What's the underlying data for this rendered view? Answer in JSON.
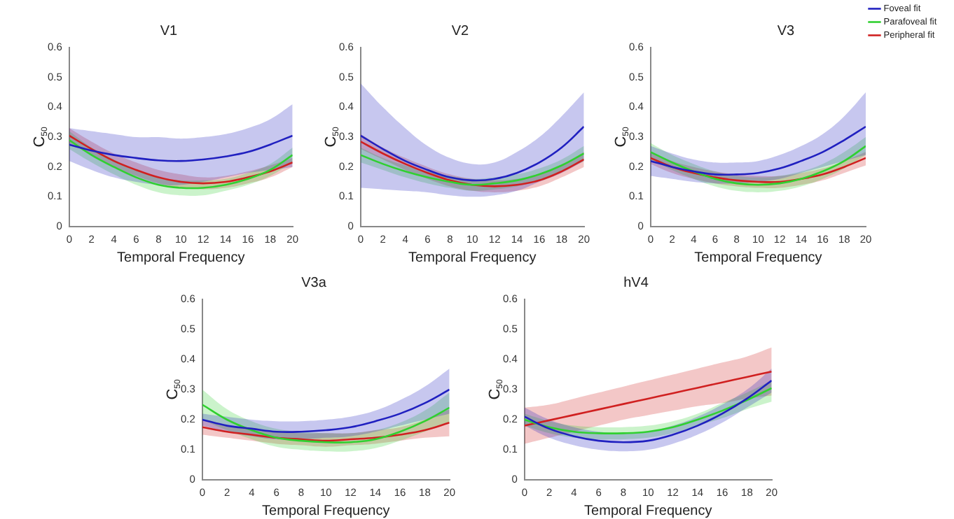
{
  "chart_data": [
    {
      "type": "line",
      "title": "V1",
      "xlabel": "Temporal Frequency",
      "ylabel": "C$_{50}$",
      "x": [
        0,
        2,
        4,
        6,
        8,
        10,
        12,
        14,
        16,
        18,
        20
      ],
      "xlim": [
        0,
        20
      ],
      "xticks": [
        0,
        2,
        4,
        6,
        8,
        10,
        12,
        14,
        16,
        18,
        20
      ],
      "ylim": [
        0,
        0.6
      ],
      "yticks": [
        0,
        0.1,
        0.2,
        0.3,
        0.4,
        0.5,
        0.6
      ],
      "grid": false,
      "legend": false,
      "series": [
        {
          "color": "#2020c0",
          "values": [
            0.275,
            0.255,
            0.24,
            0.23,
            0.222,
            0.22,
            0.225,
            0.235,
            0.25,
            0.275,
            0.305
          ],
          "lower": [
            0.22,
            0.19,
            0.165,
            0.15,
            0.14,
            0.14,
            0.15,
            0.165,
            0.18,
            0.19,
            0.2
          ],
          "upper": [
            0.33,
            0.32,
            0.31,
            0.3,
            0.3,
            0.295,
            0.3,
            0.31,
            0.33,
            0.36,
            0.41
          ]
        },
        {
          "color": "#30d030",
          "values": [
            0.29,
            0.24,
            0.2,
            0.165,
            0.14,
            0.13,
            0.13,
            0.14,
            0.16,
            0.19,
            0.24
          ],
          "lower": [
            0.26,
            0.215,
            0.175,
            0.14,
            0.115,
            0.105,
            0.105,
            0.12,
            0.14,
            0.17,
            0.215
          ],
          "upper": [
            0.32,
            0.265,
            0.225,
            0.19,
            0.165,
            0.155,
            0.155,
            0.16,
            0.18,
            0.21,
            0.265
          ]
        },
        {
          "color": "#d02020",
          "values": [
            0.305,
            0.26,
            0.22,
            0.19,
            0.165,
            0.15,
            0.145,
            0.15,
            0.165,
            0.185,
            0.215
          ],
          "lower": [
            0.28,
            0.24,
            0.2,
            0.17,
            0.145,
            0.13,
            0.125,
            0.13,
            0.145,
            0.165,
            0.2
          ],
          "upper": [
            0.33,
            0.285,
            0.245,
            0.215,
            0.19,
            0.175,
            0.165,
            0.17,
            0.185,
            0.205,
            0.23
          ]
        }
      ]
    },
    {
      "type": "line",
      "title": "V2",
      "xlabel": "Temporal Frequency",
      "ylabel": "C$_{50}$",
      "x": [
        0,
        2,
        4,
        6,
        8,
        10,
        12,
        14,
        16,
        18,
        20
      ],
      "xlim": [
        0,
        20
      ],
      "xticks": [
        0,
        2,
        4,
        6,
        8,
        10,
        12,
        14,
        16,
        18,
        20
      ],
      "ylim": [
        0,
        0.6
      ],
      "yticks": [
        0,
        0.1,
        0.2,
        0.3,
        0.4,
        0.5,
        0.6
      ],
      "grid": false,
      "legend": false,
      "series": [
        {
          "color": "#2020c0",
          "values": [
            0.305,
            0.26,
            0.22,
            0.19,
            0.165,
            0.155,
            0.16,
            0.18,
            0.215,
            0.265,
            0.335
          ],
          "lower": [
            0.13,
            0.125,
            0.12,
            0.115,
            0.105,
            0.1,
            0.105,
            0.12,
            0.15,
            0.18,
            0.22
          ],
          "upper": [
            0.48,
            0.4,
            0.33,
            0.27,
            0.23,
            0.21,
            0.215,
            0.25,
            0.3,
            0.37,
            0.45
          ]
        },
        {
          "color": "#30d030",
          "values": [
            0.24,
            0.21,
            0.185,
            0.165,
            0.15,
            0.14,
            0.145,
            0.155,
            0.175,
            0.205,
            0.245
          ],
          "lower": [
            0.215,
            0.19,
            0.165,
            0.145,
            0.13,
            0.12,
            0.125,
            0.135,
            0.155,
            0.185,
            0.22
          ],
          "upper": [
            0.265,
            0.23,
            0.205,
            0.185,
            0.17,
            0.16,
            0.165,
            0.175,
            0.195,
            0.225,
            0.27
          ]
        },
        {
          "color": "#d02020",
          "values": [
            0.285,
            0.245,
            0.21,
            0.18,
            0.155,
            0.14,
            0.135,
            0.14,
            0.155,
            0.185,
            0.225
          ],
          "lower": [
            0.26,
            0.225,
            0.19,
            0.16,
            0.135,
            0.12,
            0.115,
            0.12,
            0.135,
            0.165,
            0.2
          ],
          "upper": [
            0.31,
            0.265,
            0.23,
            0.2,
            0.175,
            0.16,
            0.155,
            0.16,
            0.175,
            0.205,
            0.25
          ]
        }
      ]
    },
    {
      "type": "line",
      "title": "V3",
      "xlabel": "Temporal Frequency",
      "ylabel": "C$_{50}$",
      "x": [
        0,
        2,
        4,
        6,
        8,
        10,
        12,
        14,
        16,
        18,
        20
      ],
      "xlim": [
        0,
        20
      ],
      "xticks": [
        0,
        2,
        4,
        6,
        8,
        10,
        12,
        14,
        16,
        18,
        20
      ],
      "ylim": [
        0,
        0.6
      ],
      "yticks": [
        0,
        0.1,
        0.2,
        0.3,
        0.4,
        0.5,
        0.6
      ],
      "grid": false,
      "legend": "top right",
      "series": [
        {
          "name": "Foveal fit",
          "color": "#2020c0",
          "values": [
            0.22,
            0.2,
            0.185,
            0.175,
            0.175,
            0.18,
            0.195,
            0.22,
            0.25,
            0.29,
            0.335
          ],
          "lower": [
            0.17,
            0.16,
            0.15,
            0.145,
            0.145,
            0.15,
            0.16,
            0.18,
            0.2,
            0.22,
            0.24
          ],
          "upper": [
            0.27,
            0.245,
            0.225,
            0.215,
            0.215,
            0.22,
            0.24,
            0.27,
            0.31,
            0.37,
            0.45
          ]
        },
        {
          "name": "Parafoveal fit",
          "color": "#30d030",
          "values": [
            0.25,
            0.215,
            0.185,
            0.16,
            0.145,
            0.14,
            0.145,
            0.16,
            0.185,
            0.22,
            0.27
          ],
          "lower": [
            0.225,
            0.19,
            0.16,
            0.135,
            0.12,
            0.115,
            0.12,
            0.135,
            0.16,
            0.195,
            0.24
          ],
          "upper": [
            0.28,
            0.24,
            0.21,
            0.185,
            0.17,
            0.165,
            0.17,
            0.185,
            0.21,
            0.25,
            0.3
          ]
        },
        {
          "name": "Peripheral fit",
          "color": "#d02020",
          "values": [
            0.23,
            0.2,
            0.18,
            0.165,
            0.155,
            0.15,
            0.15,
            0.16,
            0.175,
            0.2,
            0.23
          ],
          "lower": [
            0.21,
            0.18,
            0.16,
            0.145,
            0.135,
            0.13,
            0.13,
            0.14,
            0.155,
            0.18,
            0.205
          ],
          "upper": [
            0.25,
            0.22,
            0.2,
            0.185,
            0.175,
            0.17,
            0.17,
            0.18,
            0.195,
            0.22,
            0.25
          ]
        }
      ]
    },
    {
      "type": "line",
      "title": "V3a",
      "xlabel": "Temporal Frequency",
      "ylabel": "C$_{50}$",
      "x": [
        0,
        2,
        4,
        6,
        8,
        10,
        12,
        14,
        16,
        18,
        20
      ],
      "xlim": [
        0,
        20
      ],
      "xticks": [
        0,
        2,
        4,
        6,
        8,
        10,
        12,
        14,
        16,
        18,
        20
      ],
      "ylim": [
        0,
        0.6
      ],
      "yticks": [
        0,
        0.1,
        0.2,
        0.3,
        0.4,
        0.5,
        0.6
      ],
      "grid": false,
      "legend": false,
      "series": [
        {
          "color": "#2020c0",
          "values": [
            0.2,
            0.18,
            0.17,
            0.16,
            0.16,
            0.165,
            0.175,
            0.195,
            0.22,
            0.255,
            0.3
          ],
          "lower": [
            0.18,
            0.16,
            0.145,
            0.135,
            0.135,
            0.14,
            0.145,
            0.16,
            0.18,
            0.2,
            0.22
          ],
          "upper": [
            0.22,
            0.21,
            0.2,
            0.195,
            0.195,
            0.2,
            0.21,
            0.23,
            0.265,
            0.31,
            0.37
          ]
        },
        {
          "color": "#30d030",
          "values": [
            0.25,
            0.2,
            0.165,
            0.14,
            0.13,
            0.125,
            0.125,
            0.135,
            0.16,
            0.195,
            0.24
          ],
          "lower": [
            0.2,
            0.165,
            0.135,
            0.11,
            0.1,
            0.095,
            0.095,
            0.105,
            0.13,
            0.16,
            0.19
          ],
          "upper": [
            0.3,
            0.235,
            0.195,
            0.17,
            0.16,
            0.155,
            0.155,
            0.165,
            0.19,
            0.23,
            0.29
          ]
        },
        {
          "color": "#d02020",
          "values": [
            0.175,
            0.16,
            0.15,
            0.14,
            0.135,
            0.13,
            0.135,
            0.14,
            0.15,
            0.165,
            0.19
          ],
          "lower": [
            0.15,
            0.14,
            0.13,
            0.12,
            0.115,
            0.11,
            0.115,
            0.12,
            0.13,
            0.14,
            0.145
          ],
          "upper": [
            0.2,
            0.18,
            0.17,
            0.16,
            0.155,
            0.155,
            0.155,
            0.165,
            0.175,
            0.2,
            0.235
          ]
        }
      ]
    },
    {
      "type": "line",
      "title": "hV4",
      "xlabel": "Temporal Frequency",
      "ylabel": "C$_{50}$",
      "x": [
        0,
        2,
        4,
        6,
        8,
        10,
        12,
        14,
        16,
        18,
        20
      ],
      "xlim": [
        0,
        20
      ],
      "xticks": [
        0,
        2,
        4,
        6,
        8,
        10,
        12,
        14,
        16,
        18,
        20
      ],
      "ylim": [
        0,
        0.6
      ],
      "yticks": [
        0,
        0.1,
        0.2,
        0.3,
        0.4,
        0.5,
        0.6
      ],
      "grid": false,
      "legend": false,
      "series": [
        {
          "color": "#2020c0",
          "values": [
            0.21,
            0.17,
            0.145,
            0.13,
            0.125,
            0.13,
            0.15,
            0.18,
            0.22,
            0.27,
            0.33
          ],
          "lower": [
            0.18,
            0.14,
            0.115,
            0.1,
            0.095,
            0.1,
            0.12,
            0.15,
            0.19,
            0.24,
            0.29
          ],
          "upper": [
            0.24,
            0.2,
            0.175,
            0.16,
            0.155,
            0.16,
            0.18,
            0.21,
            0.25,
            0.3,
            0.37
          ]
        },
        {
          "color": "#30d030",
          "values": [
            0.2,
            0.175,
            0.16,
            0.155,
            0.155,
            0.16,
            0.175,
            0.2,
            0.23,
            0.265,
            0.305
          ],
          "lower": [
            0.18,
            0.155,
            0.14,
            0.135,
            0.135,
            0.14,
            0.155,
            0.18,
            0.205,
            0.235,
            0.26
          ],
          "upper": [
            0.22,
            0.195,
            0.18,
            0.175,
            0.175,
            0.18,
            0.195,
            0.22,
            0.255,
            0.29,
            0.33
          ]
        },
        {
          "color": "#d02020",
          "values": [
            0.18,
            0.198,
            0.216,
            0.234,
            0.252,
            0.27,
            0.288,
            0.306,
            0.324,
            0.342,
            0.36
          ],
          "lower": [
            0.12,
            0.14,
            0.16,
            0.18,
            0.2,
            0.215,
            0.23,
            0.245,
            0.255,
            0.27,
            0.28
          ],
          "upper": [
            0.24,
            0.25,
            0.27,
            0.29,
            0.31,
            0.33,
            0.35,
            0.37,
            0.39,
            0.41,
            0.44
          ]
        }
      ]
    }
  ]
}
